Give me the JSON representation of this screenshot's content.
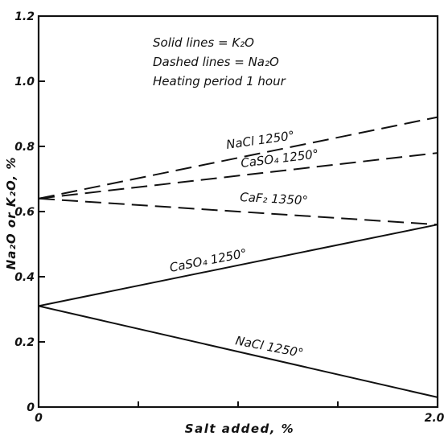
{
  "chart_data": {
    "type": "line",
    "xlabel": "Salt added, %",
    "ylabel": "Na₂O or K₂O, %",
    "xlim": [
      0,
      2.0
    ],
    "ylim": [
      0,
      1.2
    ],
    "x_ticks": [
      "0",
      "2.0"
    ],
    "y_ticks": [
      "0",
      "0.2",
      "0.4",
      "0.6",
      "0.8",
      "1.0",
      "1.2"
    ],
    "y_tick_values": [
      0,
      0.2,
      0.4,
      0.6,
      0.8,
      1.0,
      1.2
    ],
    "annotations": [
      "Solid lines = K₂O",
      "Dashed lines = Na₂O",
      "Heating period 1 hour"
    ],
    "series": [
      {
        "name": "NaCl 1250°",
        "style": "dashed",
        "x": [
          0,
          2.0
        ],
        "y": [
          0.64,
          0.89
        ]
      },
      {
        "name": "CaSO₄ 1250°",
        "style": "dashed",
        "x": [
          0,
          2.0
        ],
        "y": [
          0.64,
          0.78
        ]
      },
      {
        "name": "CaF₂ 1350°",
        "style": "dashed",
        "x": [
          0,
          2.0
        ],
        "y": [
          0.64,
          0.56
        ]
      },
      {
        "name": "CaSO₄ 1250°",
        "style": "solid",
        "x": [
          0,
          2.0
        ],
        "y": [
          0.31,
          0.56
        ]
      },
      {
        "name": "NaCl 1250°",
        "style": "solid",
        "x": [
          0,
          2.0
        ],
        "y": [
          0.31,
          0.03
        ]
      }
    ]
  }
}
